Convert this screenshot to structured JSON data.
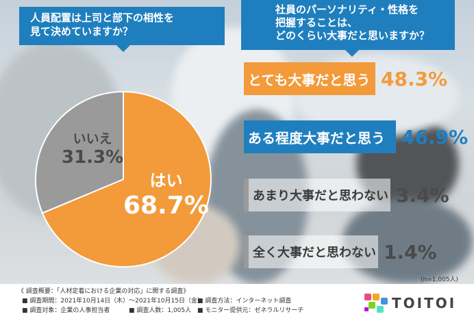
{
  "header_left": {
    "line1": "人員配置は上司と部下の相性を",
    "line2": "見て決めていますか？"
  },
  "header_right": {
    "line1": "社員のパーソナリティ・性格を",
    "line2": "把握することは、",
    "line3": "どのくらい大事だと思いますか？"
  },
  "colors": {
    "orange": "#f39a3b",
    "blue": "#1f7fbe",
    "gray": "#9a9a9a"
  },
  "chart_data": [
    {
      "type": "pie",
      "title": "人員配置は上司と部下の相性を見て決めていますか？",
      "slices": [
        {
          "label": "はい",
          "value": 68.7,
          "display": "68.7%",
          "color": "#f39a3b"
        },
        {
          "label": "いいえ",
          "value": 31.3,
          "display": "31.3%",
          "color": "#9a9a9a"
        }
      ]
    },
    {
      "type": "table",
      "title": "社員のパーソナリティ・性格を把握することは、どのくらい大事だと思いますか？",
      "rows": [
        {
          "label": "とても大事だと思う",
          "value": 48.3,
          "display": "48.3%"
        },
        {
          "label": "ある程度大事だと思う",
          "value": 46.9,
          "display": "46.9%"
        },
        {
          "label": "あまり大事だと思わない",
          "value": 3.4,
          "display": "3.4%"
        },
        {
          "label": "全く大事だと思わない",
          "value": 1.4,
          "display": "1.4%"
        }
      ]
    }
  ],
  "n_note": "(n=1,005人)",
  "survey": {
    "title": "《 調査概要：「人材定着における企業の対応」に関する調査》",
    "period": "■ 調査期間：2021年10月14日（木）〜2021年10月15日（金）",
    "method": "■ 調査方法：インターネット調査",
    "target": "■ 調査対象：企業の人事担当者",
    "count": "■ 調査人数：1,005人",
    "provider": "■ モニター提供元：ゼネラルリサーチ"
  },
  "logo": {
    "text": "TOITOI",
    "icon": "puzzle-pieces-logo-icon"
  }
}
